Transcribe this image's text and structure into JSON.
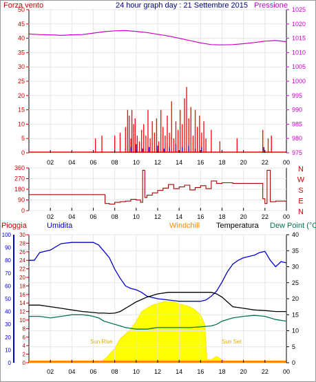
{
  "title": "24 hour graph day : 21 Settembre 2015",
  "chart_data": [
    {
      "type": "line",
      "panel": "wind-pressure",
      "left_label": "Forza vento",
      "right_label": "Pressione",
      "x_ticks": [
        "02",
        "04",
        "06",
        "08",
        "10",
        "12",
        "14",
        "16",
        "18",
        "20",
        "22",
        "00"
      ],
      "y_left_ticks": [
        "0",
        "5",
        "10",
        "15",
        "20",
        "25",
        "30",
        "35",
        "40",
        "45",
        "50"
      ],
      "y_left_range": [
        0,
        50
      ],
      "y_right_ticks": [
        "975",
        "980",
        "985",
        "990",
        "995",
        "1000",
        "1005",
        "1010",
        "1015",
        "1020",
        "1025"
      ],
      "y_right_range": [
        975,
        1025
      ],
      "series": [
        {
          "color": "#cc00cc",
          "axis": "right",
          "x": [
            0,
            1,
            2,
            3,
            4,
            5,
            6,
            7,
            8,
            9,
            10,
            11,
            12,
            13,
            14,
            15,
            16,
            17,
            18,
            19,
            20,
            21,
            22,
            23,
            24
          ],
          "y": [
            1016.5,
            1016.3,
            1016.2,
            1016.0,
            1016.2,
            1016.3,
            1016.8,
            1017.3,
            1017.6,
            1017.7,
            1017.4,
            1017.0,
            1016.4,
            1015.8,
            1015.0,
            1014.2,
            1013.4,
            1012.8,
            1012.7,
            1012.8,
            1013.1,
            1013.5,
            1014.0,
            1014.2,
            1013.8
          ]
        },
        {
          "color": "#ff0000",
          "axis": "left",
          "style": "spikes",
          "x": [
            6.2,
            6.8,
            8.0,
            8.5,
            9.0,
            9.2,
            9.35,
            9.5,
            9.6,
            9.75,
            9.9,
            10.1,
            10.3,
            10.5,
            10.7,
            10.9,
            11.1,
            11.3,
            11.5,
            11.7,
            11.9,
            12.1,
            12.3,
            12.5,
            12.7,
            12.9,
            13.1,
            13.3,
            13.5,
            13.7,
            13.9,
            14.1,
            14.3,
            14.5,
            14.7,
            14.9,
            15.1,
            15.3,
            15.5,
            15.7,
            15.9,
            16.1,
            16.3,
            16.5,
            17.0,
            17.8,
            19.4,
            21.8,
            22.3,
            22.6
          ],
          "y": [
            5,
            6,
            6,
            7,
            9,
            15,
            13,
            5,
            15,
            10,
            12,
            6,
            4,
            8,
            10,
            6,
            15,
            5,
            11,
            7,
            12,
            4,
            15,
            9,
            6,
            13,
            7,
            18,
            5,
            11,
            8,
            15,
            10,
            19,
            23,
            12,
            16,
            6,
            15,
            9,
            13,
            7,
            11,
            5,
            8,
            4,
            5,
            8,
            5,
            6
          ]
        },
        {
          "color": "#0000cc",
          "axis": "left",
          "style": "spikes",
          "x": [
            9.5,
            10.0,
            10.6,
            11.2,
            12.0,
            12.6,
            13.1,
            13.7,
            14.3,
            14.9,
            15.5,
            16.1,
            21.9
          ],
          "y": [
            2,
            3,
            1.5,
            2,
            2.5,
            1.5,
            2,
            3,
            2,
            2.5,
            1.5,
            2,
            2
          ]
        }
      ]
    },
    {
      "type": "line",
      "panel": "wind-direction",
      "right_labels": [
        "N",
        "W",
        "S",
        "E",
        "N"
      ],
      "x_ticks": [
        "02",
        "04",
        "06",
        "08",
        "10",
        "12",
        "14",
        "16",
        "18",
        "20",
        "22",
        "00"
      ],
      "y_ticks": [
        "0",
        "90",
        "180",
        "270",
        "360"
      ],
      "y_range": [
        0,
        360
      ],
      "series": [
        {
          "color": "#aa0000",
          "x": [
            0,
            6.8,
            7.1,
            7.5,
            8.0,
            8.5,
            9.0,
            9.5,
            10.0,
            10.4,
            10.6,
            10.8,
            11.0,
            11.5,
            12.0,
            12.5,
            13.0,
            13.5,
            14.0,
            14.5,
            15.0,
            15.5,
            16.0,
            16.5,
            17.0,
            17.5,
            18.0,
            19.0,
            20.0,
            21.0,
            21.5,
            21.8,
            22.0,
            22.2,
            22.5,
            23.0,
            24.0
          ],
          "y": [
            135,
            135,
            60,
            55,
            70,
            75,
            80,
            95,
            90,
            70,
            340,
            110,
            130,
            150,
            170,
            190,
            220,
            185,
            200,
            215,
            175,
            195,
            210,
            185,
            250,
            230,
            235,
            230,
            230,
            230,
            230,
            100,
            60,
            340,
            75,
            80,
            80
          ]
        }
      ]
    },
    {
      "type": "line",
      "panel": "weather",
      "legend": [
        "Pioggia",
        "Umidita",
        "Windchill",
        "Temperatura",
        "Dew Point (°C"
      ],
      "x_ticks": [
        "02",
        "04",
        "06",
        "08",
        "10",
        "12",
        "14",
        "16",
        "18",
        "20",
        "22",
        "00"
      ],
      "y_rain_ticks": [
        "0",
        "2",
        "4",
        "6",
        "8",
        "10",
        "12",
        "14",
        "16",
        "18",
        "20",
        "22",
        "24",
        "26",
        "28",
        "30"
      ],
      "y_rain_range": [
        0,
        30
      ],
      "y_humidity_ticks": [
        "0",
        "10",
        "20",
        "30",
        "40",
        "50",
        "60",
        "70",
        "80",
        "90",
        "100"
      ],
      "y_humidity_range": [
        0,
        100
      ],
      "y_temp_ticks": [
        "0",
        "5",
        "10",
        "15",
        "20",
        "25",
        "30",
        "35",
        "40"
      ],
      "y_temp_range": [
        0,
        40
      ],
      "annotations": [
        "Sun Rise",
        "Sun Set"
      ],
      "series": [
        {
          "name": "Umidita",
          "color": "#0000cc",
          "axis": "humidity",
          "x": [
            0,
            0.5,
            1,
            2,
            3,
            4,
            5,
            6,
            6.5,
            7,
            7.5,
            8,
            8.5,
            9,
            9.5,
            10,
            10.5,
            11,
            12,
            13,
            14,
            15,
            16,
            16.5,
            17,
            17.5,
            18,
            18.5,
            19,
            19.5,
            20,
            21,
            21.5,
            22,
            22.5,
            23,
            23.5,
            24
          ],
          "y": [
            80,
            80,
            86,
            88,
            93,
            94,
            94,
            94,
            92,
            87,
            82,
            73,
            66,
            60,
            58,
            57,
            55,
            52,
            50,
            49,
            48,
            48,
            48,
            49,
            52,
            56,
            63,
            71,
            77,
            80,
            82,
            84,
            86,
            87,
            80,
            75,
            79,
            78
          ]
        },
        {
          "name": "Temperatura",
          "color": "#000000",
          "axis": "temp",
          "x": [
            0,
            0.5,
            1,
            2,
            3,
            4,
            5,
            6,
            6.5,
            7,
            7.5,
            8,
            8.5,
            9,
            9.5,
            10,
            11,
            12,
            13,
            14,
            15,
            16,
            16.5,
            17,
            17.5,
            18,
            18.5,
            19,
            20,
            21,
            22,
            23,
            24
          ],
          "y": [
            18,
            18,
            18,
            17.5,
            17,
            16.5,
            16,
            15.7,
            15.5,
            15.5,
            15.4,
            15.5,
            16,
            17,
            18,
            19,
            20.5,
            21.5,
            22,
            22,
            22,
            22,
            22,
            22,
            21.5,
            20.5,
            19,
            17.5,
            17,
            16.5,
            16.3,
            16,
            16
          ]
        },
        {
          "name": "Dew Point",
          "color": "#007744",
          "axis": "temp",
          "x": [
            0,
            1,
            2,
            3,
            4,
            5,
            5.5,
            6,
            6.5,
            7,
            7.5,
            8,
            8.5,
            9,
            10,
            11,
            12,
            13,
            14,
            15,
            16,
            17,
            17.5,
            18,
            19,
            20,
            21,
            22,
            23,
            24
          ],
          "y": [
            14.5,
            14.5,
            14,
            14.5,
            15,
            15,
            14.8,
            14.5,
            14,
            13,
            12.5,
            12,
            11.5,
            11,
            10.5,
            10.5,
            11,
            11,
            11,
            11,
            11.2,
            11.5,
            12,
            13,
            14,
            14.5,
            14.8,
            14.5,
            13.5,
            13
          ]
        },
        {
          "name": "Sun",
          "color": "#ffff00",
          "axis": "temp",
          "style": "area",
          "x": [
            6.8,
            7.2,
            7.6,
            8.0,
            8.5,
            9.0,
            9.5,
            10.0,
            10.5,
            11.0,
            11.5,
            12.0,
            12.5,
            13.0,
            13.5,
            14.0,
            14.5,
            15.0,
            15.5,
            16.0,
            16.4,
            16.6,
            17.0,
            17.5,
            18.0,
            18.5
          ],
          "y": [
            0.5,
            1.5,
            3,
            4.5,
            7.5,
            9,
            10.5,
            13,
            16,
            17,
            18,
            18.5,
            19,
            19,
            19,
            18.5,
            18,
            17.5,
            16.5,
            15,
            12,
            1,
            1,
            2,
            1,
            0
          ]
        }
      ]
    }
  ]
}
